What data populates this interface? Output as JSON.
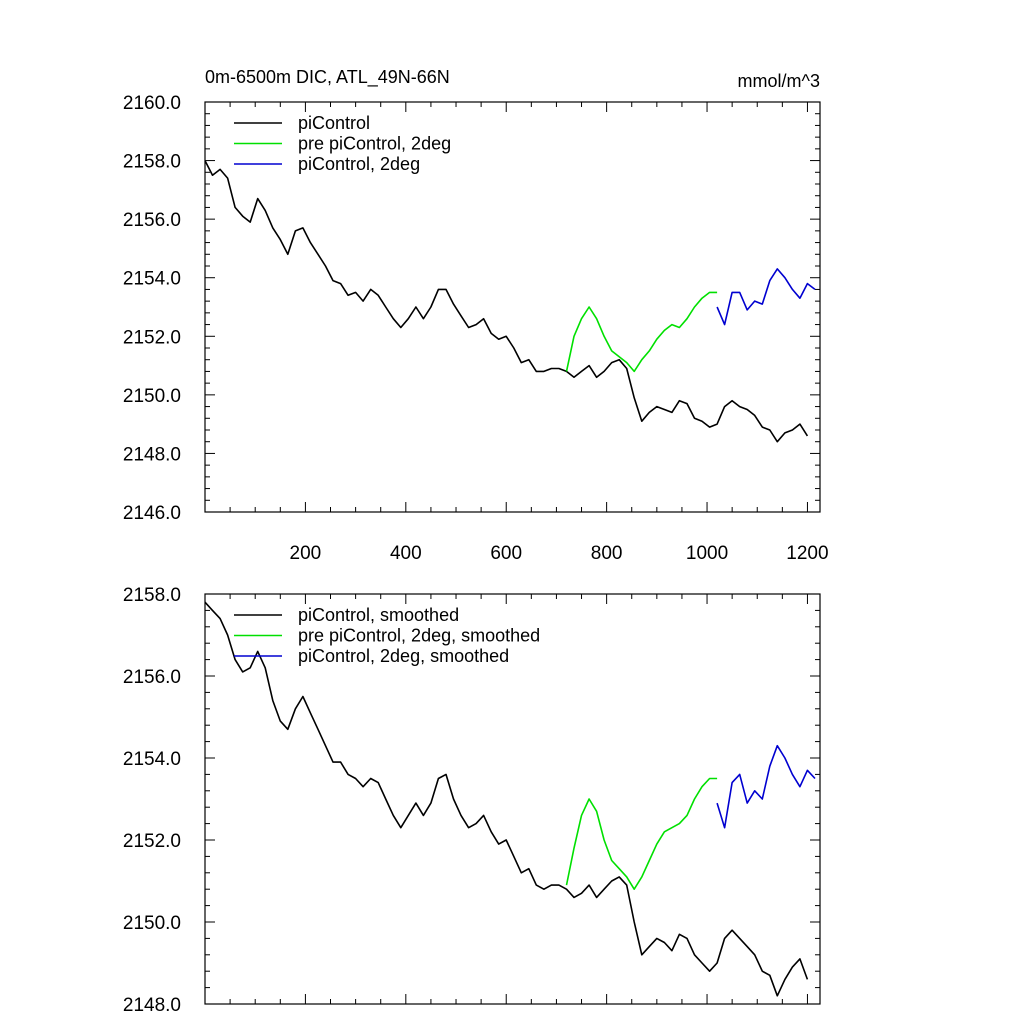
{
  "chart_data": [
    {
      "type": "line",
      "title": "0m-6500m DIC, ATL_49N-66N",
      "units": "mmol/m^3",
      "xlim": [
        0,
        1225
      ],
      "ylim": [
        2146.0,
        2160.0
      ],
      "xticks": [
        200,
        400,
        600,
        800,
        1000,
        1200
      ],
      "xtick_labels": [
        "200",
        "400",
        "600",
        "800",
        "1000",
        "1200"
      ],
      "yticks": [
        2146.0,
        2148.0,
        2150.0,
        2152.0,
        2154.0,
        2156.0,
        2158.0,
        2160.0
      ],
      "ytick_labels": [
        "2146.0",
        "2148.0",
        "2150.0",
        "2152.0",
        "2154.0",
        "2156.0",
        "2158.0",
        "2160.0"
      ],
      "legend_position": "top-left",
      "series": [
        {
          "name": "piControl",
          "color": "#000000",
          "x": [
            0,
            15,
            30,
            45,
            60,
            75,
            90,
            105,
            120,
            135,
            150,
            165,
            180,
            195,
            210,
            225,
            240,
            255,
            270,
            285,
            300,
            315,
            330,
            345,
            360,
            375,
            390,
            405,
            420,
            435,
            450,
            465,
            480,
            495,
            510,
            525,
            540,
            555,
            570,
            585,
            600,
            615,
            630,
            645,
            660,
            675,
            690,
            705,
            720,
            735,
            750,
            765,
            780,
            795,
            810,
            825,
            840,
            855,
            870,
            885,
            900,
            915,
            930,
            945,
            960,
            975,
            990,
            1005,
            1020,
            1035,
            1050,
            1065,
            1080,
            1095,
            1110,
            1125,
            1140,
            1155,
            1170,
            1185,
            1200
          ],
          "y": [
            2158.0,
            2157.5,
            2157.7,
            2157.4,
            2156.4,
            2156.1,
            2155.9,
            2156.7,
            2156.3,
            2155.7,
            2155.3,
            2154.8,
            2155.6,
            2155.7,
            2155.2,
            2154.8,
            2154.4,
            2153.9,
            2153.8,
            2153.4,
            2153.5,
            2153.2,
            2153.6,
            2153.4,
            2153.0,
            2152.6,
            2152.3,
            2152.6,
            2153.0,
            2152.6,
            2153.0,
            2153.6,
            2153.6,
            2153.1,
            2152.7,
            2152.3,
            2152.4,
            2152.6,
            2152.1,
            2151.9,
            2152.0,
            2151.6,
            2151.1,
            2151.2,
            2150.8,
            2150.8,
            2150.9,
            2150.9,
            2150.8,
            2150.6,
            2150.8,
            2151.0,
            2150.6,
            2150.8,
            2151.1,
            2151.2,
            2150.9,
            2149.9,
            2149.1,
            2149.4,
            2149.6,
            2149.5,
            2149.4,
            2149.8,
            2149.7,
            2149.2,
            2149.1,
            2148.9,
            2149.0,
            2149.6,
            2149.8,
            2149.6,
            2149.5,
            2149.3,
            2148.9,
            2148.8,
            2148.4,
            2148.7,
            2148.8,
            2149.0,
            2148.6
          ]
        },
        {
          "name": "pre piControl, 2deg",
          "color": "#00e000",
          "x": [
            720,
            735,
            750,
            765,
            780,
            795,
            810,
            825,
            840,
            855,
            870,
            885,
            900,
            915,
            930,
            945,
            960,
            975,
            990,
            1005,
            1020
          ],
          "y": [
            2150.8,
            2152.0,
            2152.6,
            2153.0,
            2152.6,
            2152.0,
            2151.5,
            2151.3,
            2151.1,
            2150.8,
            2151.2,
            2151.5,
            2151.9,
            2152.2,
            2152.4,
            2152.3,
            2152.6,
            2153.0,
            2153.3,
            2153.5,
            2153.5
          ]
        },
        {
          "name": "piControl, 2deg",
          "color": "#0000d0",
          "x": [
            1020,
            1035,
            1050,
            1065,
            1080,
            1095,
            1110,
            1125,
            1140,
            1155,
            1170,
            1185,
            1200,
            1215
          ],
          "y": [
            2153.0,
            2152.4,
            2153.5,
            2153.5,
            2152.9,
            2153.2,
            2153.1,
            2153.9,
            2154.3,
            2154.0,
            2153.6,
            2153.3,
            2153.8,
            2153.6
          ]
        }
      ]
    },
    {
      "type": "line",
      "xlim": [
        0,
        1225
      ],
      "ylim": [
        2148.0,
        2158.0
      ],
      "xticks": [
        200,
        400,
        600,
        800,
        1000,
        1200
      ],
      "yticks": [
        2148.0,
        2150.0,
        2152.0,
        2154.0,
        2156.0,
        2158.0
      ],
      "ytick_labels": [
        "2148.0",
        "2150.0",
        "2152.0",
        "2154.0",
        "2156.0",
        "2158.0"
      ],
      "legend_position": "top-left",
      "series": [
        {
          "name": "piControl, smoothed",
          "color": "#000000",
          "x": [
            0,
            15,
            30,
            45,
            60,
            75,
            90,
            105,
            120,
            135,
            150,
            165,
            180,
            195,
            210,
            225,
            240,
            255,
            270,
            285,
            300,
            315,
            330,
            345,
            360,
            375,
            390,
            405,
            420,
            435,
            450,
            465,
            480,
            495,
            510,
            525,
            540,
            555,
            570,
            585,
            600,
            615,
            630,
            645,
            660,
            675,
            690,
            705,
            720,
            735,
            750,
            765,
            780,
            795,
            810,
            825,
            840,
            855,
            870,
            885,
            900,
            915,
            930,
            945,
            960,
            975,
            990,
            1005,
            1020,
            1035,
            1050,
            1065,
            1080,
            1095,
            1110,
            1125,
            1140,
            1155,
            1170,
            1185,
            1200
          ],
          "y": [
            2157.8,
            2157.6,
            2157.4,
            2157.0,
            2156.4,
            2156.1,
            2156.2,
            2156.6,
            2156.2,
            2155.4,
            2154.9,
            2154.7,
            2155.2,
            2155.5,
            2155.1,
            2154.7,
            2154.3,
            2153.9,
            2153.9,
            2153.6,
            2153.5,
            2153.3,
            2153.5,
            2153.4,
            2153.0,
            2152.6,
            2152.3,
            2152.6,
            2152.9,
            2152.6,
            2152.9,
            2153.5,
            2153.6,
            2153.0,
            2152.6,
            2152.3,
            2152.4,
            2152.6,
            2152.2,
            2151.9,
            2152.0,
            2151.6,
            2151.2,
            2151.3,
            2150.9,
            2150.8,
            2150.9,
            2150.9,
            2150.8,
            2150.6,
            2150.7,
            2150.9,
            2150.6,
            2150.8,
            2151.0,
            2151.1,
            2150.9,
            2150.0,
            2149.2,
            2149.4,
            2149.6,
            2149.5,
            2149.3,
            2149.7,
            2149.6,
            2149.2,
            2149.0,
            2148.8,
            2149.0,
            2149.6,
            2149.8,
            2149.6,
            2149.4,
            2149.2,
            2148.8,
            2148.7,
            2148.2,
            2148.6,
            2148.9,
            2149.1,
            2148.6
          ]
        },
        {
          "name": "pre piControl, 2deg, smoothed",
          "color": "#00e000",
          "x": [
            720,
            735,
            750,
            765,
            780,
            795,
            810,
            825,
            840,
            855,
            870,
            885,
            900,
            915,
            930,
            945,
            960,
            975,
            990,
            1005,
            1020
          ],
          "y": [
            2150.9,
            2151.8,
            2152.6,
            2153.0,
            2152.7,
            2152.0,
            2151.5,
            2151.3,
            2151.1,
            2150.8,
            2151.1,
            2151.5,
            2151.9,
            2152.2,
            2152.3,
            2152.4,
            2152.6,
            2153.0,
            2153.3,
            2153.5,
            2153.5
          ]
        },
        {
          "name": "piControl, 2deg, smoothed",
          "color": "#0000d0",
          "x": [
            1020,
            1035,
            1050,
            1065,
            1080,
            1095,
            1110,
            1125,
            1140,
            1155,
            1170,
            1185,
            1200,
            1215
          ],
          "y": [
            2152.9,
            2152.3,
            2153.4,
            2153.6,
            2152.9,
            2153.2,
            2153.0,
            2153.8,
            2154.3,
            2154.0,
            2153.6,
            2153.3,
            2153.7,
            2153.5
          ]
        }
      ]
    }
  ]
}
